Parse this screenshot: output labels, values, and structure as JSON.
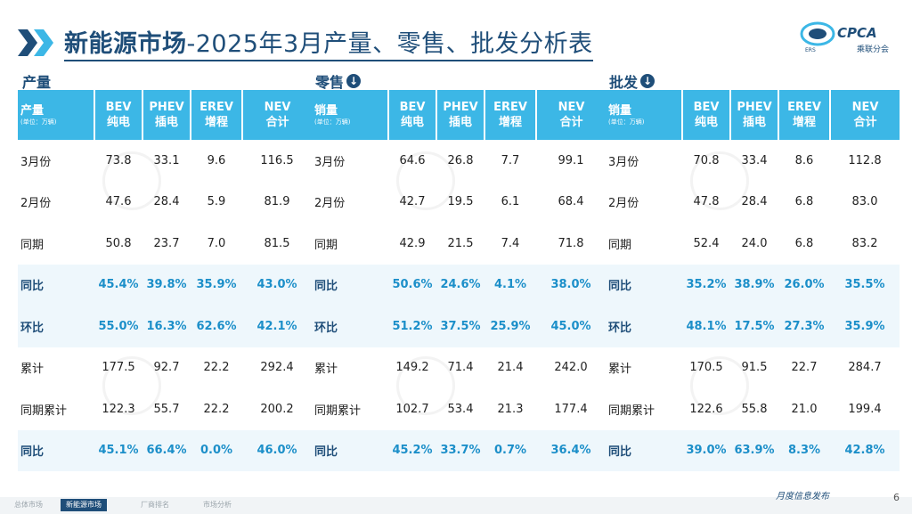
{
  "header": {
    "title_strong": "新能源市场",
    "title_rest": "-2025年3月产量、零售、批发分析表"
  },
  "logo": {
    "brand": "CPCA",
    "sub": "乘联分会",
    "mark": "ERS"
  },
  "sections": [
    {
      "title": "产量",
      "has_icon": false,
      "corner_label": "产量",
      "corner_unit": "(单位：万辆)",
      "columns": [
        {
          "en": "BEV",
          "cn": "纯电"
        },
        {
          "en": "PHEV",
          "cn": "插电"
        },
        {
          "en": "EREV",
          "cn": "增程"
        },
        {
          "en": "NEV",
          "cn": "合计"
        }
      ],
      "rows": [
        {
          "label": "3月份",
          "values": [
            "73.8",
            "33.1",
            "9.6",
            "116.5"
          ],
          "highlight": false
        },
        {
          "label": "2月份",
          "values": [
            "47.6",
            "28.4",
            "5.9",
            "81.9"
          ],
          "highlight": false
        },
        {
          "label": "同期",
          "values": [
            "50.8",
            "23.7",
            "7.0",
            "81.5"
          ],
          "highlight": false
        },
        {
          "label": "同比",
          "values": [
            "45.4%",
            "39.8%",
            "35.9%",
            "43.0%"
          ],
          "highlight": true
        },
        {
          "label": "环比",
          "values": [
            "55.0%",
            "16.3%",
            "62.6%",
            "42.1%"
          ],
          "highlight": true
        },
        {
          "label": "累计",
          "values": [
            "177.5",
            "92.7",
            "22.2",
            "292.4"
          ],
          "highlight": false
        },
        {
          "label": "同期累计",
          "values": [
            "122.3",
            "55.7",
            "22.2",
            "200.2"
          ],
          "highlight": false
        },
        {
          "label": "同比",
          "values": [
            "45.1%",
            "66.4%",
            "0.0%",
            "46.0%"
          ],
          "highlight": true
        }
      ]
    },
    {
      "title": "零售",
      "has_icon": true,
      "corner_label": "销量",
      "corner_unit": "(单位：万辆)",
      "columns": [
        {
          "en": "BEV",
          "cn": "纯电"
        },
        {
          "en": "PHEV",
          "cn": "插电"
        },
        {
          "en": "EREV",
          "cn": "增程"
        },
        {
          "en": "NEV",
          "cn": "合计"
        }
      ],
      "rows": [
        {
          "label": "3月份",
          "values": [
            "64.6",
            "26.8",
            "7.7",
            "99.1"
          ],
          "highlight": false
        },
        {
          "label": "2月份",
          "values": [
            "42.7",
            "19.5",
            "6.1",
            "68.4"
          ],
          "highlight": false
        },
        {
          "label": "同期",
          "values": [
            "42.9",
            "21.5",
            "7.4",
            "71.8"
          ],
          "highlight": false
        },
        {
          "label": "同比",
          "values": [
            "50.6%",
            "24.6%",
            "4.1%",
            "38.0%"
          ],
          "highlight": true
        },
        {
          "label": "环比",
          "values": [
            "51.2%",
            "37.5%",
            "25.9%",
            "45.0%"
          ],
          "highlight": true
        },
        {
          "label": "累计",
          "values": [
            "149.2",
            "71.4",
            "21.4",
            "242.0"
          ],
          "highlight": false
        },
        {
          "label": "同期累计",
          "values": [
            "102.7",
            "53.4",
            "21.3",
            "177.4"
          ],
          "highlight": false
        },
        {
          "label": "同比",
          "values": [
            "45.2%",
            "33.7%",
            "0.7%",
            "36.4%"
          ],
          "highlight": true
        }
      ]
    },
    {
      "title": "批发",
      "has_icon": true,
      "corner_label": "销量",
      "corner_unit": "(单位：万辆)",
      "columns": [
        {
          "en": "BEV",
          "cn": "纯电"
        },
        {
          "en": "PHEV",
          "cn": "插电"
        },
        {
          "en": "EREV",
          "cn": "增程"
        },
        {
          "en": "NEV",
          "cn": "合计"
        }
      ],
      "rows": [
        {
          "label": "3月份",
          "values": [
            "70.8",
            "33.4",
            "8.6",
            "112.8"
          ],
          "highlight": false
        },
        {
          "label": "2月份",
          "values": [
            "47.8",
            "28.4",
            "6.8",
            "83.0"
          ],
          "highlight": false
        },
        {
          "label": "同期",
          "values": [
            "52.4",
            "24.0",
            "6.8",
            "83.2"
          ],
          "highlight": false
        },
        {
          "label": "同比",
          "values": [
            "35.2%",
            "38.9%",
            "26.0%",
            "35.5%"
          ],
          "highlight": true
        },
        {
          "label": "环比",
          "values": [
            "48.1%",
            "17.5%",
            "27.3%",
            "35.9%"
          ],
          "highlight": true
        },
        {
          "label": "累计",
          "values": [
            "170.5",
            "91.5",
            "22.7",
            "284.7"
          ],
          "highlight": false
        },
        {
          "label": "同期累计",
          "values": [
            "122.6",
            "55.8",
            "21.0",
            "199.4"
          ],
          "highlight": false
        },
        {
          "label": "同比",
          "values": [
            "39.0%",
            "63.9%",
            "8.3%",
            "42.8%"
          ],
          "highlight": true
        }
      ]
    }
  ],
  "footer": {
    "tabs": [
      {
        "label": "总体市场",
        "active": false
      },
      {
        "label": "新能源市场",
        "active": true
      },
      {
        "label": "厂商排名",
        "active": false
      },
      {
        "label": "市场分析",
        "active": false
      }
    ],
    "release": "月度信息发布",
    "page": "6"
  },
  "colors": {
    "header_bg": "#3cb7e6",
    "title_blue": "#1f4e79",
    "highlight_text": "#1c8fc9",
    "highlight_bg": "#eef7fc"
  }
}
